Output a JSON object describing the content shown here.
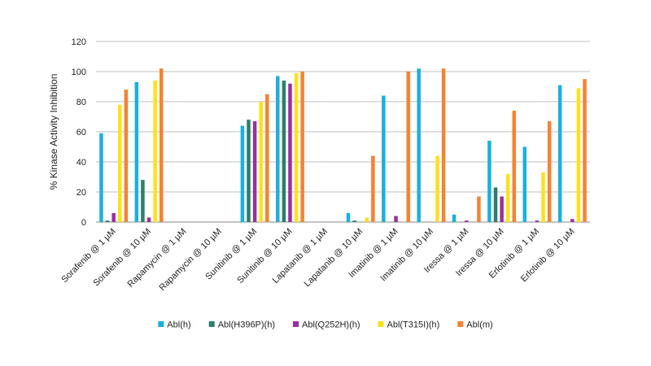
{
  "chart_data": {
    "type": "bar",
    "ylabel": "% Kinase Activity Inhibition",
    "xlabel": "",
    "ylim": [
      0,
      120
    ],
    "yticks": [
      0,
      20,
      40,
      60,
      80,
      100,
      120
    ],
    "grid": true,
    "legend_position": "bottom",
    "categories": [
      "Sorafenib @ 1 µM",
      "Sorafenib @ 10 µM",
      "Rapamycin @ 1 µM",
      "Rapamycin @ 10 µM",
      "Sunitinib @ 1 µM",
      "Sunitinib @ 10 µM",
      "Lapatanib @ 1 µM",
      "Lapatanib @ 10 µM",
      "Imatinib @ 1 µM",
      "Imatinib @ 10 µM",
      "Iressa @ 1 µM",
      "Iressa @ 10 µM",
      "Erlotinib @ 1 µM",
      "Erlotinib @ 10 µM"
    ],
    "series": [
      {
        "name": "Abl(h)",
        "color": "#1ab0e0",
        "values": [
          59,
          93,
          0,
          0,
          64,
          97,
          0,
          6,
          84,
          102,
          5,
          54,
          50,
          91
        ]
      },
      {
        "name": "Abl(H396P)(h)",
        "color": "#2e7d6e",
        "values": [
          1,
          28,
          0,
          0,
          68,
          94,
          0,
          1,
          0,
          0,
          0,
          23,
          0,
          0
        ]
      },
      {
        "name": "Abl(Q252H)(h)",
        "color": "#9b2f9e",
        "values": [
          6,
          3,
          0,
          0,
          67,
          92,
          0,
          0,
          4,
          0,
          1,
          17,
          1,
          2
        ]
      },
      {
        "name": "Abl(T315I)(h)",
        "color": "#ffe01a",
        "values": [
          78,
          94,
          0,
          0,
          80,
          99,
          0,
          3,
          0,
          44,
          0,
          32,
          33,
          89
        ]
      },
      {
        "name": "Abl(m)",
        "color": "#f58233",
        "values": [
          88,
          102,
          0,
          0,
          85,
          100,
          0,
          44,
          100,
          102,
          17,
          74,
          67,
          95
        ]
      }
    ]
  }
}
